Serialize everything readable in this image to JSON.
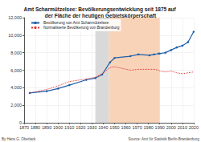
{
  "chart_data": {
    "type": "line",
    "title": "Amt Scharmützelsee: Bevölkerungsentwicklung seit 1875 auf der Fläche der heutigen Gebietskörperschaft",
    "series": [
      {
        "name": "Bevölkerung von Amt Scharmützelsee",
        "color": "#1f5fa8",
        "marker": "circle",
        "line_style": "solid",
        "x": [
          1875,
          1890,
          1900,
          1910,
          1925,
          1933,
          1939,
          1946,
          1950,
          1964,
          1971,
          1981,
          1985,
          1989,
          1990,
          1995,
          2000,
          2005,
          2010,
          2015,
          2020
        ],
        "values": [
          3400,
          3600,
          3900,
          4300,
          4900,
          5100,
          5500,
          6900,
          7400,
          7600,
          7800,
          7700,
          7800,
          7900,
          7900,
          8000,
          8300,
          8600,
          8800,
          9200,
          10400
        ]
      },
      {
        "name": "Normalisierte Bevölkerung von Brandenburg",
        "color": "#e03030",
        "marker": "none",
        "line_style": "dotted",
        "x": [
          1875,
          1890,
          1900,
          1910,
          1925,
          1933,
          1939,
          1946,
          1950,
          1964,
          1971,
          1981,
          1985,
          1989,
          1990,
          1995,
          2000,
          2005,
          2010,
          2015,
          2020
        ],
        "values": [
          3400,
          3800,
          4200,
          4700,
          5000,
          5200,
          5600,
          6300,
          6400,
          6000,
          6100,
          6100,
          6100,
          6000,
          5900,
          5800,
          5900,
          5700,
          5600,
          5700,
          5800
        ]
      }
    ],
    "xlim": [
      1870,
      2020
    ],
    "xticks": [
      1870,
      1880,
      1890,
      1900,
      1910,
      1920,
      1930,
      1940,
      1950,
      1960,
      1970,
      1980,
      1990,
      2000,
      2010,
      2020
    ],
    "ylim": [
      0,
      12000
    ],
    "yticks": [
      0,
      {
        "value": 2000,
        "label": "2,000"
      },
      {
        "value": 4000,
        "label": "4,000"
      },
      {
        "value": 6000,
        "label": "6,000"
      },
      {
        "value": 8000,
        "label": "8,000"
      },
      {
        "value": 10000,
        "label": "10,000"
      },
      {
        "value": 12000,
        "label": "12,000"
      }
    ],
    "grid": true,
    "legend": "upper left",
    "shaded_periods": [
      {
        "from": 1933,
        "to": 1945,
        "color": "#d9d9d9"
      },
      {
        "from": 1945,
        "to": 1990,
        "color": "#f9d3b8"
      }
    ],
    "footer": {
      "author": "By Hans G. Oberlack",
      "source": "Source: Amt für Statistik Berlin-Brandenburg"
    }
  }
}
